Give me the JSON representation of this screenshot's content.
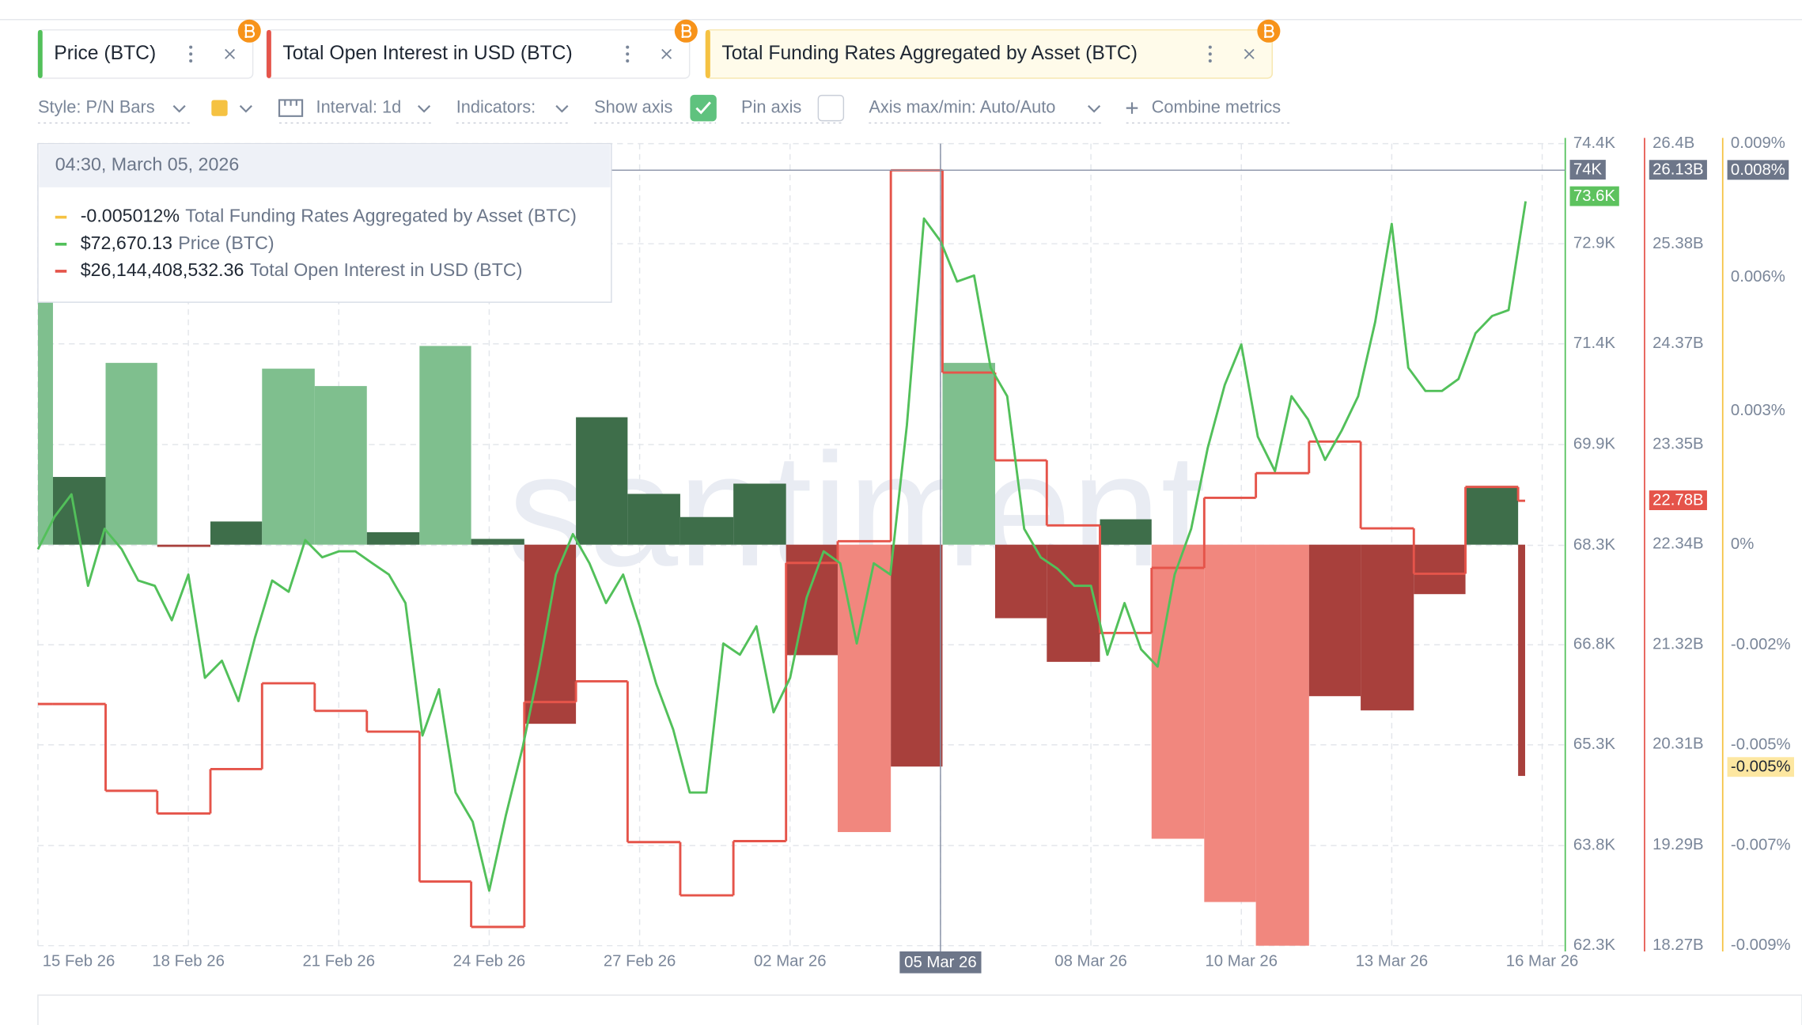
{
  "tabs": [
    "Price (BTC)",
    "Total Open Interest in USD (BTC)",
    "Total Funding Rates Aggregated by Asset (BTC)"
  ],
  "toolbar": {
    "style": "Style: P/N Bars",
    "interval": "Interval: 1d",
    "indicators": "Indicators:",
    "show_axis": "Show axis",
    "show_axis_checked": true,
    "pin_axis": "Pin axis",
    "pin_axis_checked": false,
    "axis_minmax": "Axis max/min: Auto/Auto",
    "combine": "Combine metrics"
  },
  "tooltip": {
    "title": "04:30, March 05, 2026",
    "rows": [
      {
        "value": "-0.005012%",
        "name": "Total Funding Rates Aggregated by Asset (BTC)",
        "color": "#f5c242"
      },
      {
        "value": "$72,670.13",
        "name": "Price (BTC)",
        "color": "#52c05a"
      },
      {
        "value": "$26,144,408,532.36",
        "name": "Total Open Interest in USD (BTC)",
        "color": "#e5544a"
      }
    ]
  },
  "watermark": "santiment.",
  "chart_data": {
    "type": "combo",
    "xlim": [
      0,
      30.46
    ],
    "xticks": [
      {
        "value": 0,
        "label": "15 Feb 26"
      },
      {
        "value": 3,
        "label": "18 Feb 26"
      },
      {
        "value": 6,
        "label": "21 Feb 26"
      },
      {
        "value": 9,
        "label": "24 Feb 26"
      },
      {
        "value": 12,
        "label": "27 Feb 26"
      },
      {
        "value": 15,
        "label": "02 Mar 26"
      },
      {
        "value": 18,
        "label": "05 Mar 26"
      },
      {
        "value": 21,
        "label": "08 Mar 26"
      },
      {
        "value": 24,
        "label": "10 Mar 26"
      },
      {
        "value": 27,
        "label": "13 Mar 26"
      },
      {
        "value": 30,
        "label": "16 Mar 26"
      }
    ],
    "ylim": [
      62300,
      74400
    ],
    "yticks": [
      {
        "value": 74400,
        "label": "74.4K"
      },
      {
        "value": 72890,
        "label": "72.9K"
      },
      {
        "value": 71380,
        "label": "71.4K"
      },
      {
        "value": 69860,
        "label": "69.9K"
      },
      {
        "value": 68340,
        "label": "68.3K"
      },
      {
        "value": 66840,
        "label": "66.8K"
      },
      {
        "value": 65330,
        "label": "65.3K"
      },
      {
        "value": 63810,
        "label": "63.8K"
      },
      {
        "value": 62300,
        "label": "62.3K"
      }
    ],
    "y2lim": [
      18.27,
      26.4
    ],
    "y2ticks": [
      {
        "value": 26.4,
        "label": "26.4B"
      },
      {
        "value": 25.38,
        "label": "25.38B"
      },
      {
        "value": 24.37,
        "label": "24.37B"
      },
      {
        "value": 23.35,
        "label": "23.35B"
      },
      {
        "value": 22.34,
        "label": "22.34B"
      },
      {
        "value": 21.32,
        "label": "21.32B"
      },
      {
        "value": 20.31,
        "label": "20.31B"
      },
      {
        "value": 19.29,
        "label": "19.29B"
      },
      {
        "value": 18.27,
        "label": "18.27B"
      }
    ],
    "y3lim": [
      -0.009,
      0.009
    ],
    "y3ticks": [
      {
        "value": 0.009,
        "label": "0.009%"
      },
      {
        "value": 0.006,
        "label": "0.006%"
      },
      {
        "value": 0.003,
        "label": "0.003%"
      },
      {
        "value": 0,
        "label": "0%"
      },
      {
        "value": -0.00225,
        "label": "-0.002%"
      },
      {
        "value": -0.0045,
        "label": "-0.005%"
      },
      {
        "value": -0.00675,
        "label": "-0.007%"
      },
      {
        "value": -0.009,
        "label": "-0.009%"
      }
    ],
    "grid": true,
    "crosshair": {
      "x": {
        "value": 18,
        "label": "05 Mar 26"
      },
      "y": {
        "value": 74000,
        "label": "74K"
      },
      "y2": {
        "value": 26.13,
        "label": "26.13B"
      },
      "y3": {
        "value": 0.0084,
        "label": "0.008%"
      }
    },
    "series": [
      {
        "name": "Price (BTC)",
        "color": "#52c05a",
        "axis": "y",
        "last": {
          "value": 73600,
          "label": "73.6K"
        },
        "x": [
          0,
          0.33,
          0.67,
          1,
          1.33,
          1.67,
          2,
          2.33,
          2.67,
          3,
          3.33,
          3.67,
          4,
          4.33,
          4.67,
          5,
          5.33,
          5.67,
          6,
          6.33,
          6.67,
          7,
          7.33,
          7.67,
          8,
          8.33,
          8.67,
          9,
          9.33,
          9.67,
          10,
          10.33,
          10.67,
          11,
          11.33,
          11.67,
          12,
          12.33,
          12.67,
          13,
          13.33,
          13.67,
          14,
          14.33,
          14.67,
          15,
          15.33,
          15.67,
          16,
          16.33,
          16.67,
          17,
          17.33,
          17.67,
          18,
          18.33,
          18.67,
          19,
          19.33,
          19.67,
          20,
          20.33,
          20.67,
          21,
          21.33,
          21.67,
          22,
          22.33,
          22.67,
          23,
          23.33,
          23.67,
          24,
          24.33,
          24.67,
          25,
          25.33,
          25.67,
          26,
          26.33,
          26.67,
          27,
          27.33,
          27.67,
          28,
          28.33,
          28.67,
          29,
          29.33,
          29.67
        ],
        "values": [
          68280,
          68770,
          69110,
          67730,
          68590,
          68280,
          67810,
          67730,
          67210,
          67900,
          66340,
          66600,
          65990,
          66950,
          67810,
          67640,
          68420,
          68160,
          68250,
          68250,
          68070,
          67900,
          67470,
          65470,
          66170,
          64610,
          64170,
          63130,
          64260,
          65300,
          66510,
          67900,
          68510,
          68070,
          67470,
          67900,
          67120,
          66250,
          65560,
          64610,
          64610,
          66860,
          66690,
          67120,
          65820,
          66340,
          67550,
          68250,
          68070,
          66860,
          68070,
          67900,
          70150,
          73270,
          72930,
          72320,
          72410,
          71020,
          70590,
          68590,
          68160,
          67990,
          67730,
          67730,
          66690,
          67470,
          66770,
          66510,
          67900,
          68590,
          69810,
          70760,
          71370,
          69980,
          69460,
          70590,
          70240,
          69630,
          70070,
          70590,
          71710,
          73190,
          71020,
          70670,
          70670,
          70850,
          71540,
          71800,
          71890,
          73530
        ]
      },
      {
        "name": "Total Open Interest in USD (BTC)",
        "color": "#e5544a",
        "axis": "y2",
        "last": {
          "value": 22.78,
          "label": "22.78B"
        },
        "bins": [
          0,
          0.3,
          1.35,
          2.38,
          3.44,
          4.47,
          5.52,
          6.56,
          7.61,
          8.64,
          9.7,
          10.73,
          11.76,
          12.81,
          13.87,
          14.92,
          15.95,
          17.01,
          18.04,
          19.09,
          20.12,
          21.18,
          22.21,
          23.26,
          24.29,
          25.35,
          26.38,
          27.44,
          28.47,
          29.52,
          29.66
        ],
        "values": [
          20.72,
          20.72,
          19.84,
          19.61,
          20.06,
          20.93,
          20.65,
          20.44,
          18.92,
          18.46,
          20.74,
          20.95,
          19.32,
          18.78,
          19.33,
          22.15,
          22.37,
          26.13,
          24.08,
          23.19,
          22.53,
          21.44,
          22.1,
          22.81,
          23.06,
          23.38,
          22.5,
          22.04,
          22.92,
          22.78
        ]
      },
      {
        "name": "Total Funding Rates Aggregated by Asset (BTC)",
        "color": "#f5c242",
        "axis": "y3",
        "last": {
          "value": -0.005,
          "label": "-0.005%"
        },
        "bins": [
          0,
          0.3,
          1.35,
          2.38,
          3.44,
          4.47,
          5.52,
          6.56,
          7.61,
          8.64,
          9.7,
          10.73,
          11.76,
          12.81,
          13.87,
          14.92,
          15.95,
          17.01,
          18.04,
          19.09,
          20.12,
          21.18,
          22.21,
          23.26,
          24.29,
          25.35,
          26.38,
          27.44,
          28.47,
          29.52,
          29.66
        ],
        "values": [
          0.00565,
          0.00152,
          0.00408,
          -5e-05,
          0.00052,
          0.00395,
          0.00356,
          0.00028,
          0.00446,
          0.00013,
          -0.00402,
          0.00286,
          0.00114,
          0.00062,
          0.00137,
          -0.00248,
          -0.00645,
          -0.00498,
          0.00408,
          -0.00165,
          -0.00263,
          0.00057,
          -0.0066,
          -0.00802,
          -0.009,
          -0.0034,
          -0.00372,
          -0.00111,
          0.00132,
          -0.00519
        ],
        "bar_colors": [
          "#7fbf8e",
          "#3e6e4a",
          "#7fbf8e",
          "#a8403c",
          "#3e6e4a",
          "#7fbf8e",
          "#7fbf8e",
          "#3e6e4a",
          "#7fbf8e",
          "#3e6e4a",
          "#a8403c",
          "#3e6e4a",
          "#3e6e4a",
          "#3e6e4a",
          "#3e6e4a",
          "#a8403c",
          "#f1877e",
          "#a8403c",
          "#7fbf8e",
          "#a8403c",
          "#a8403c",
          "#3e6e4a",
          "#f1877e",
          "#f1877e",
          "#f1877e",
          "#a8403c",
          "#a8403c",
          "#a8403c",
          "#3e6e4a",
          "#a8403c"
        ]
      }
    ]
  }
}
